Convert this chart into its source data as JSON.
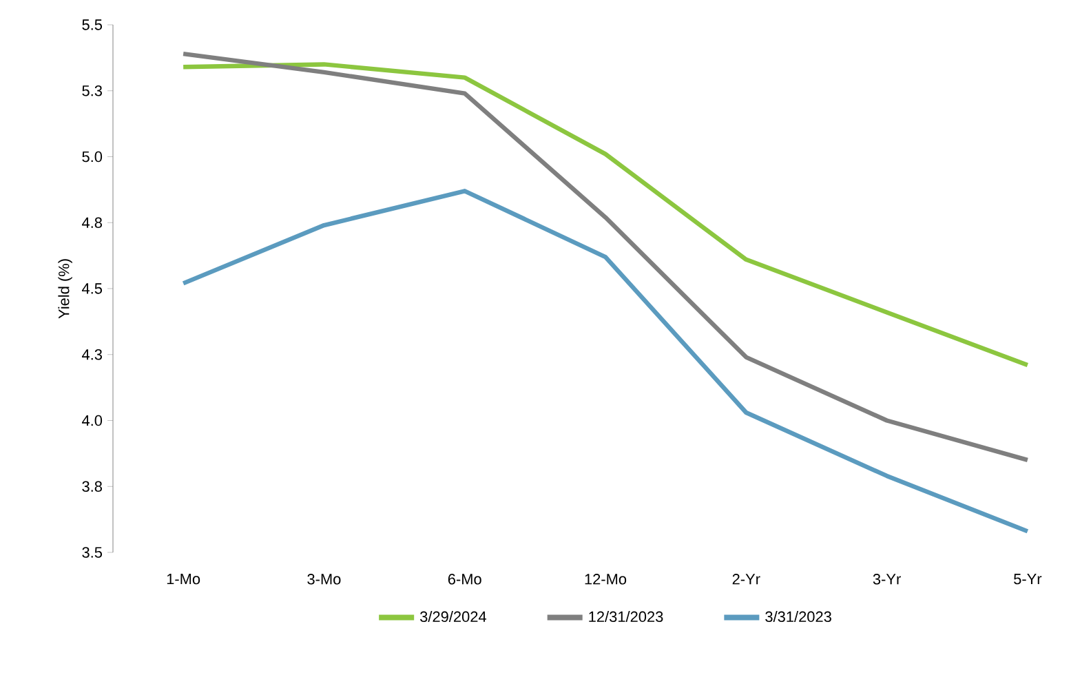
{
  "chart_data": {
    "type": "line",
    "ylabel": "Yield (%)",
    "categories": [
      "1-Mo",
      "3-Mo",
      "6-Mo",
      "12-Mo",
      "2-Yr",
      "3-Yr",
      "5-Yr"
    ],
    "series": [
      {
        "name": "3/29/2024",
        "color": "#8cc63f",
        "values": [
          5.34,
          5.35,
          5.3,
          5.01,
          4.61,
          4.41,
          4.21
        ]
      },
      {
        "name": "12/31/2023",
        "color": "#7f7f7f",
        "values": [
          5.39,
          5.32,
          5.24,
          4.77,
          4.24,
          4.0,
          3.85
        ]
      },
      {
        "name": "3/31/2023",
        "color": "#5b9bbf",
        "values": [
          4.52,
          4.74,
          4.87,
          4.62,
          4.03,
          3.79,
          3.58
        ]
      }
    ],
    "ylim": [
      3.5,
      5.5
    ],
    "yticks": [
      3.5,
      {
        "value": 3.75,
        "label": "3.8"
      },
      {
        "value": 4,
        "label": "4.0"
      },
      {
        "value": 4.25,
        "label": "4.3"
      },
      4.5,
      {
        "value": 4.75,
        "label": "4.8"
      },
      {
        "value": 5,
        "label": "5.0"
      },
      {
        "value": 5.25,
        "label": "5.3"
      },
      5.5
    ],
    "grid": false,
    "legend": "bottom",
    "marker": "none",
    "line_style": "solid"
  }
}
